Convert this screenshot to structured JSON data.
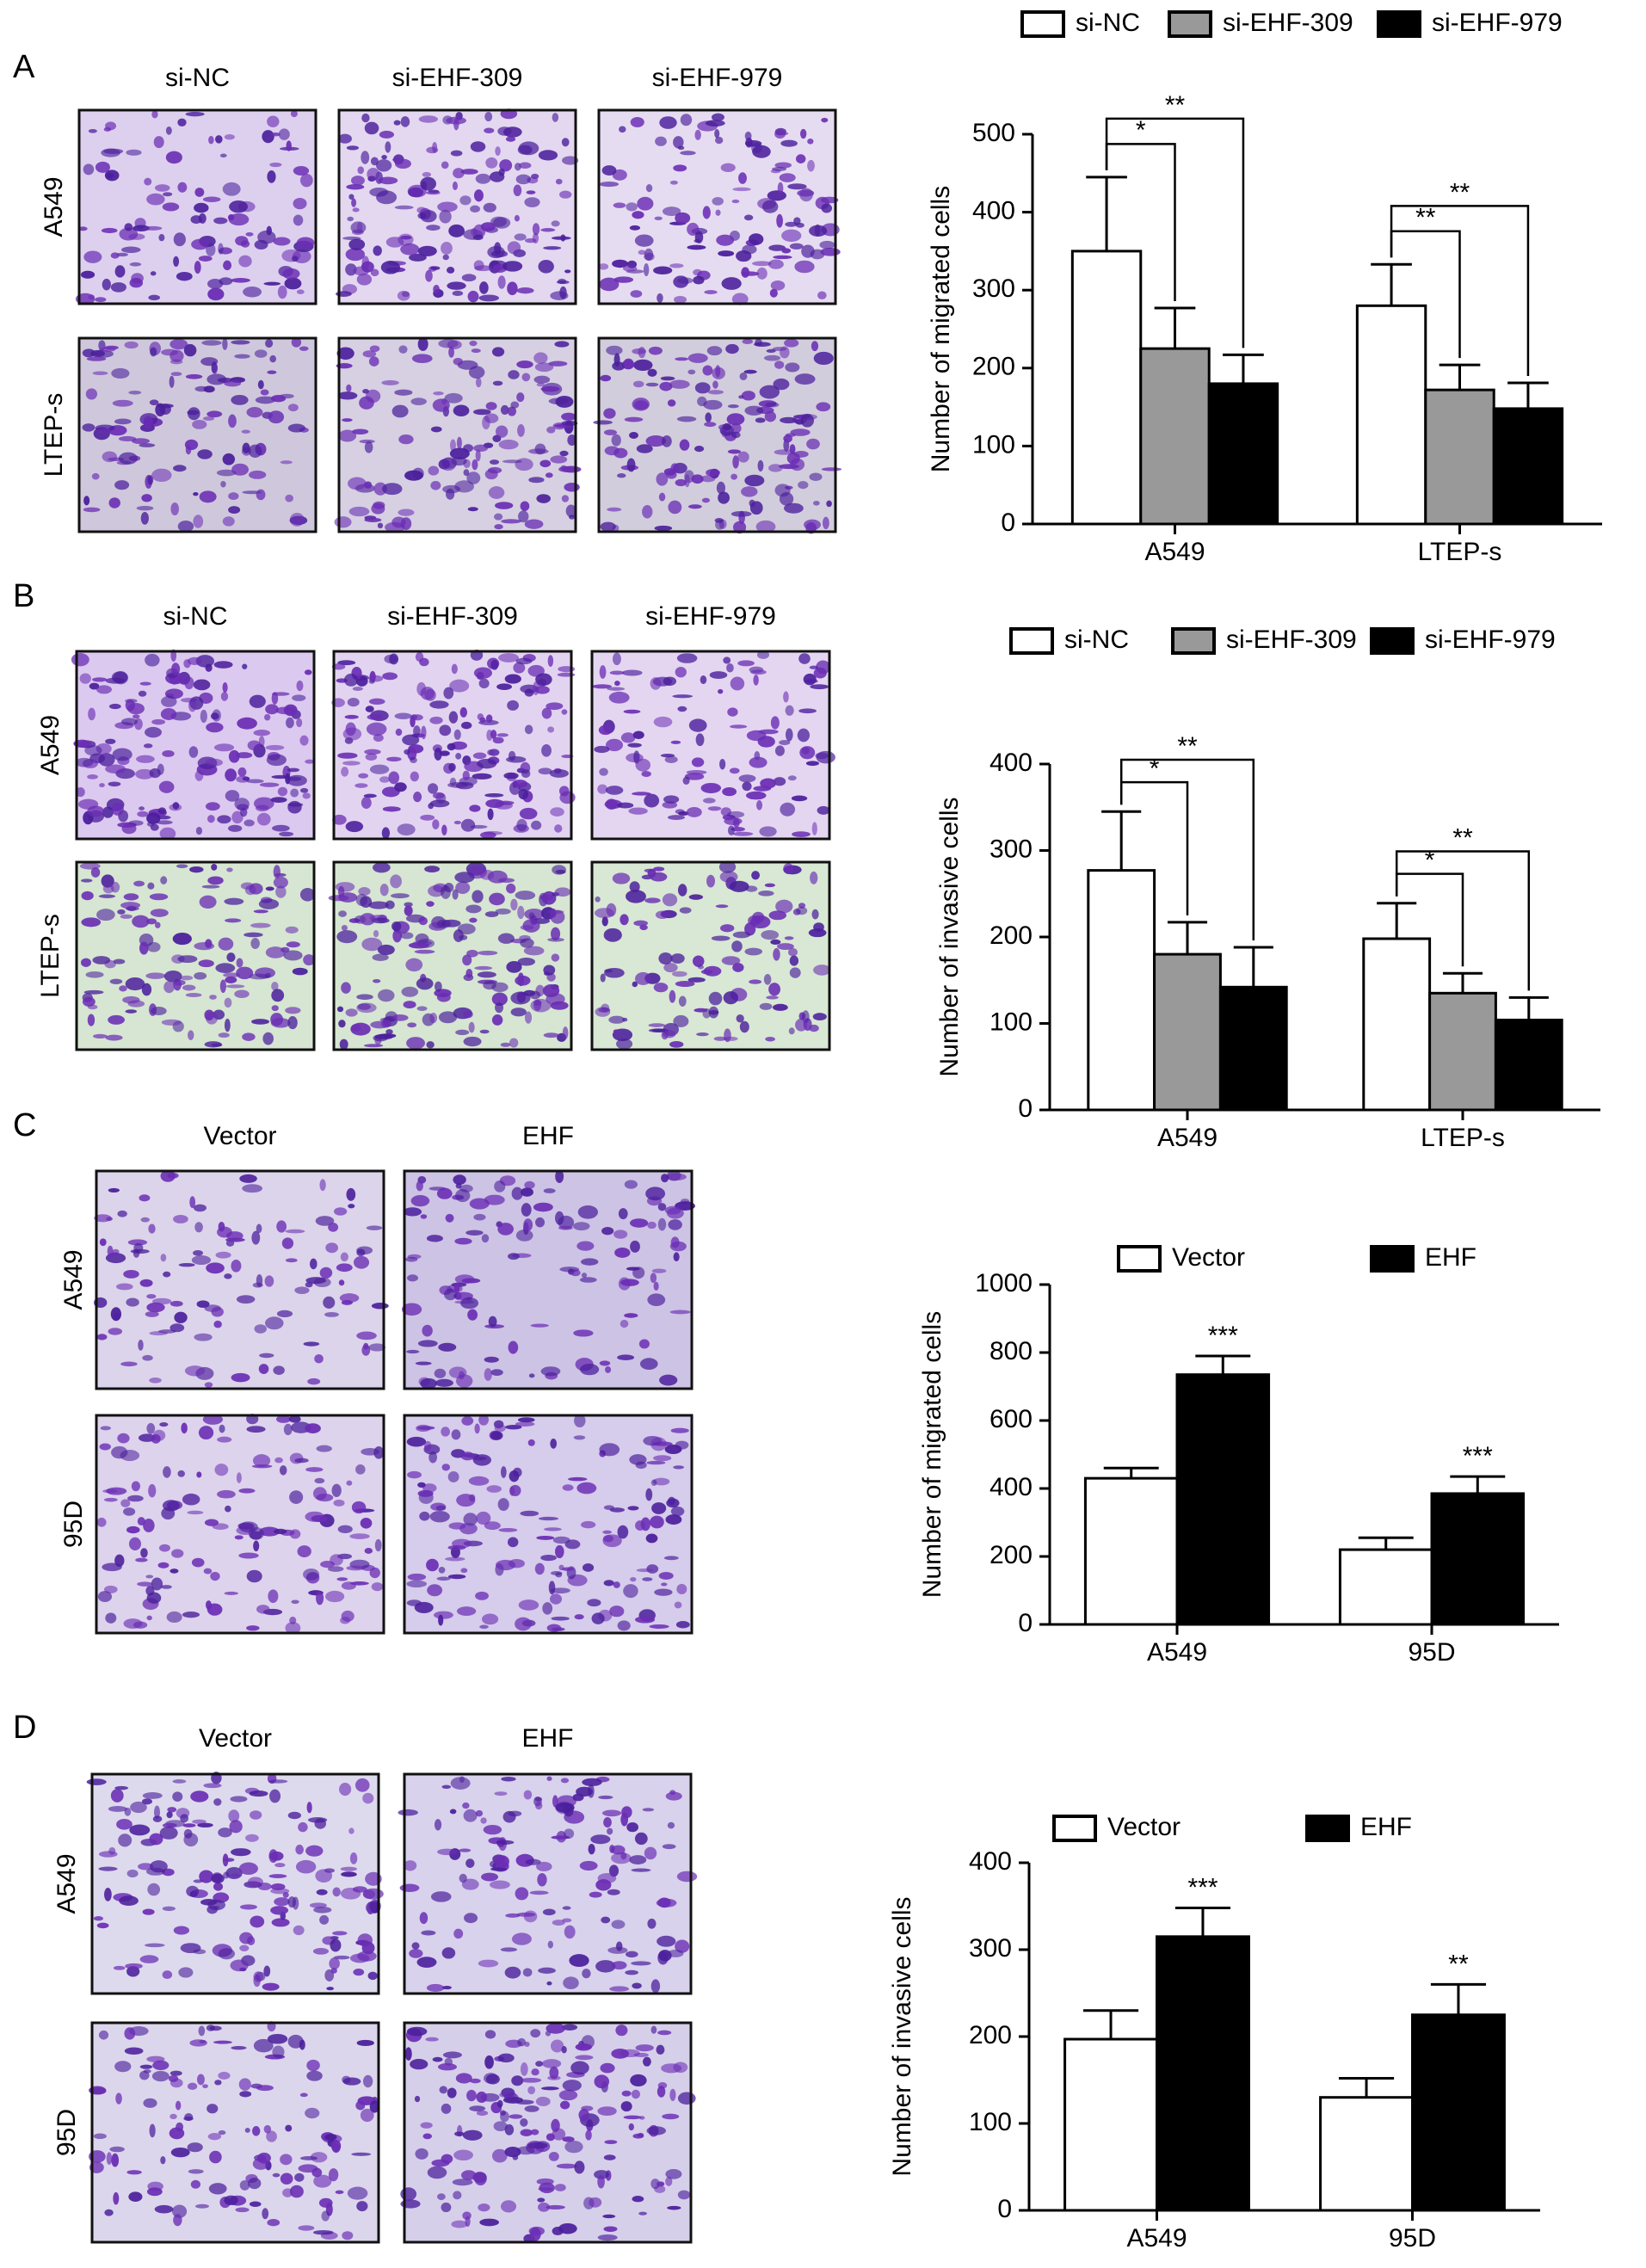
{
  "panels": [
    {
      "letter": "A",
      "columns": [
        "si-NC",
        "si-EHF-309",
        "si-EHF-979"
      ],
      "rows": [
        "A549",
        "LTEP-s"
      ]
    },
    {
      "letter": "B",
      "columns": [
        "si-NC",
        "si-EHF-309",
        "si-EHF-979"
      ],
      "rows": [
        "A549",
        "LTEP-s"
      ]
    },
    {
      "letter": "C",
      "columns": [
        "Vector",
        "EHF"
      ],
      "rows": [
        "A549",
        "95D"
      ]
    },
    {
      "letter": "D",
      "columns": [
        "Vector",
        "EHF"
      ],
      "rows": [
        "A549",
        "95D"
      ]
    }
  ],
  "chart_data": [
    {
      "type": "bar",
      "y_label": "Number of migrated cells",
      "categories": [
        "A549",
        "LTEP-s"
      ],
      "ylim": [
        0,
        500
      ],
      "yticks": [
        0,
        100,
        200,
        300,
        400,
        500
      ],
      "series": [
        {
          "name": "si-NC",
          "color": "#ffffff",
          "values": [
            350,
            280
          ],
          "errors": [
            95,
            53
          ]
        },
        {
          "name": "si-EHF-309",
          "color": "#999999",
          "values": [
            225,
            172
          ],
          "errors": [
            52,
            32
          ],
          "significance": [
            "*",
            "**"
          ]
        },
        {
          "name": "si-EHF-979",
          "color": "#000000",
          "values": [
            180,
            148
          ],
          "errors": [
            37,
            33
          ],
          "significance": [
            "**",
            "**"
          ]
        }
      ]
    },
    {
      "type": "bar",
      "y_label": "Number of invasive cells",
      "categories": [
        "A549",
        "LTEP-s"
      ],
      "ylim": [
        0,
        400
      ],
      "yticks": [
        0,
        100,
        200,
        300,
        400
      ],
      "series": [
        {
          "name": "si-NC",
          "color": "#ffffff",
          "values": [
            277,
            198
          ],
          "errors": [
            68,
            41
          ]
        },
        {
          "name": "si-EHF-309",
          "color": "#999999",
          "values": [
            180,
            135
          ],
          "errors": [
            37,
            23
          ],
          "significance": [
            "*",
            "*"
          ]
        },
        {
          "name": "si-EHF-979",
          "color": "#000000",
          "values": [
            142,
            104
          ],
          "errors": [
            46,
            26
          ],
          "significance": [
            "**",
            "**"
          ]
        }
      ]
    },
    {
      "type": "bar",
      "y_label": "Number of migrated cells",
      "categories": [
        "A549",
        "95D"
      ],
      "ylim": [
        0,
        1000
      ],
      "yticks": [
        0,
        200,
        400,
        600,
        800,
        1000
      ],
      "series": [
        {
          "name": "Vector",
          "color": "#ffffff",
          "values": [
            430,
            220
          ],
          "errors": [
            30,
            35
          ]
        },
        {
          "name": "EHF",
          "color": "#000000",
          "values": [
            735,
            385
          ],
          "errors": [
            55,
            50
          ],
          "significance": [
            "***",
            "***"
          ]
        }
      ]
    },
    {
      "type": "bar",
      "y_label": "Number of invasive cells",
      "categories": [
        "A549",
        "95D"
      ],
      "ylim": [
        0,
        400
      ],
      "yticks": [
        0,
        100,
        200,
        300,
        400
      ],
      "series": [
        {
          "name": "Vector",
          "color": "#ffffff",
          "values": [
            197,
            130
          ],
          "errors": [
            33,
            22
          ]
        },
        {
          "name": "EHF",
          "color": "#000000",
          "values": [
            315,
            225
          ],
          "errors": [
            33,
            35
          ],
          "significance": [
            "***",
            "**"
          ]
        }
      ]
    }
  ]
}
